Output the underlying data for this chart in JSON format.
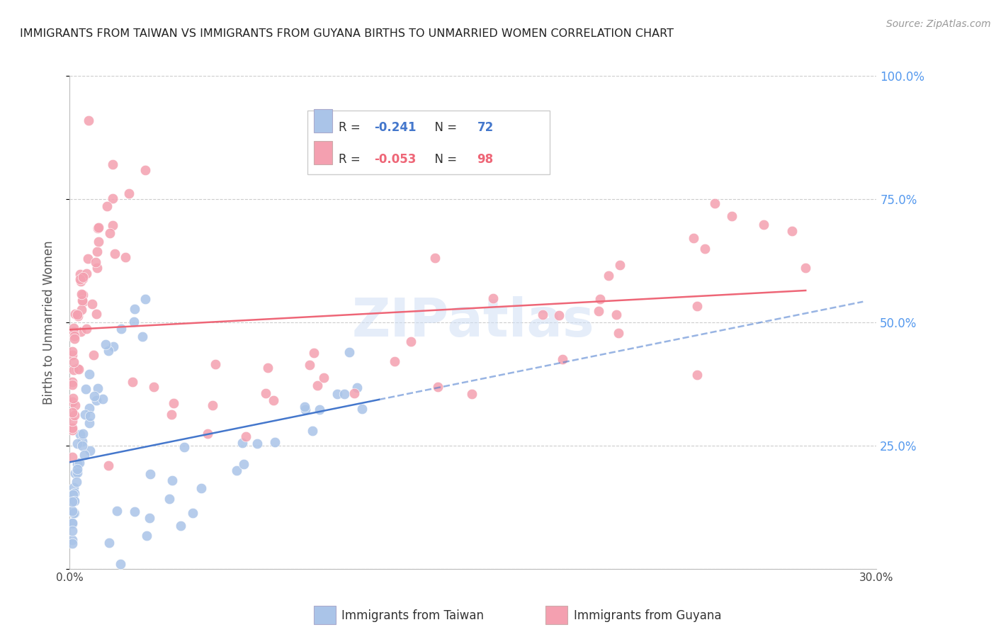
{
  "title": "IMMIGRANTS FROM TAIWAN VS IMMIGRANTS FROM GUYANA BIRTHS TO UNMARRIED WOMEN CORRELATION CHART",
  "source": "Source: ZipAtlas.com",
  "ylabel": "Births to Unmarried Women",
  "xlabel_taiwan": "Immigrants from Taiwan",
  "xlabel_guyana": "Immigrants from Guyana",
  "watermark": "ZIPatlas",
  "xlim": [
    0.0,
    0.3
  ],
  "ylim": [
    0.0,
    1.0
  ],
  "taiwan_R": -0.241,
  "taiwan_N": 72,
  "guyana_R": -0.053,
  "guyana_N": 98,
  "taiwan_color": "#aac4e8",
  "guyana_color": "#f4a0b0",
  "taiwan_line_color": "#4477cc",
  "guyana_line_color": "#ee6677",
  "right_axis_color": "#5599ee",
  "grid_color": "#cccccc"
}
